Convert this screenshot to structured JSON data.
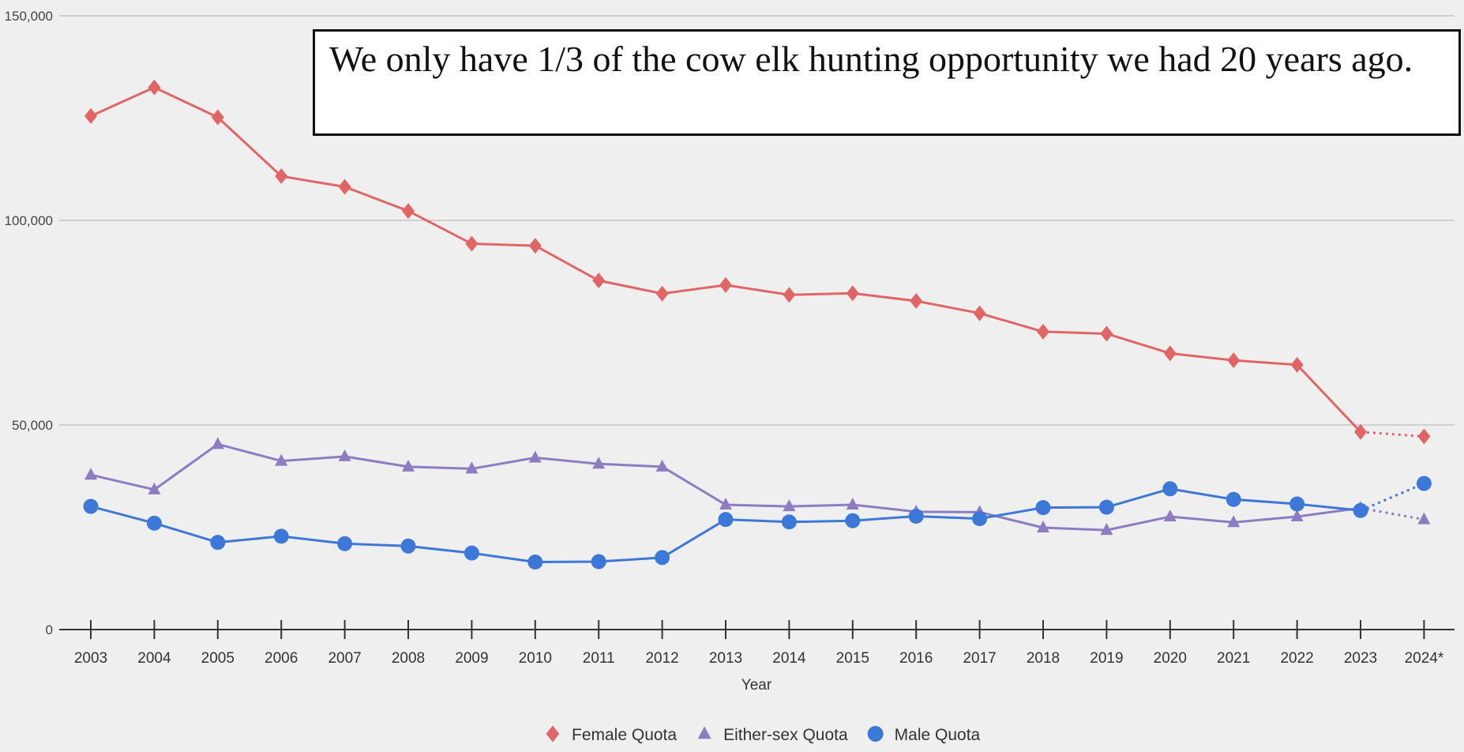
{
  "annotation": "We only have 1/3 of the cow elk hunting opportunity we had 20 years ago.",
  "chart_data": {
    "type": "line",
    "xlabel": "Year",
    "ylabel": "",
    "ylim": [
      0,
      150000
    ],
    "yticks": [
      0,
      50000,
      100000,
      150000
    ],
    "ytick_labels": [
      "0",
      "50,000",
      "100,000",
      "150,000"
    ],
    "grid": true,
    "legend_position": "bottom-center",
    "categories": [
      "2003",
      "2004",
      "2005",
      "2006",
      "2007",
      "2008",
      "2009",
      "2010",
      "2011",
      "2012",
      "2013",
      "2014",
      "2015",
      "2016",
      "2017",
      "2018",
      "2019",
      "2020",
      "2021",
      "2022",
      "2023",
      "2024*"
    ],
    "projected_from_index": 20,
    "series": [
      {
        "name": "Female Quota",
        "color": "#e06666",
        "marker": "diamond",
        "values": [
          125500,
          132500,
          125200,
          110800,
          108200,
          102300,
          94300,
          93800,
          85300,
          82100,
          84200,
          81800,
          82200,
          80300,
          77300,
          72800,
          72300,
          67500,
          65800,
          64700,
          48300,
          47200
        ]
      },
      {
        "name": "Either-sex Quota",
        "color": "#8e7cc3",
        "marker": "triangle",
        "values": [
          37800,
          34200,
          45300,
          41200,
          42300,
          39800,
          39300,
          42000,
          40500,
          39800,
          30500,
          30100,
          30500,
          28800,
          28700,
          24900,
          24300,
          27600,
          26200,
          27600,
          29700,
          26900
        ]
      },
      {
        "name": "Male Quota",
        "color": "#3c78d8",
        "marker": "circle",
        "values": [
          30100,
          26000,
          21300,
          22800,
          21000,
          20400,
          18700,
          16500,
          16600,
          17600,
          26900,
          26300,
          26600,
          27700,
          27100,
          29800,
          29900,
          34400,
          31800,
          30700,
          29100,
          35700
        ]
      }
    ]
  }
}
